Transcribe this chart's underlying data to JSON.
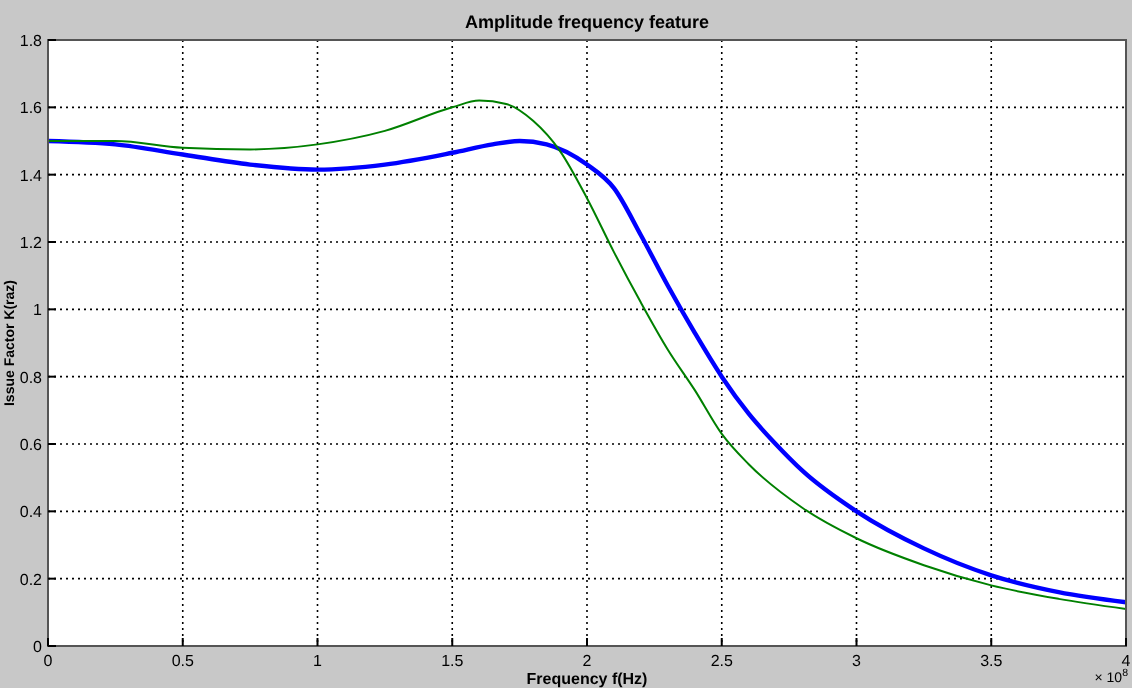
{
  "chart_data": {
    "type": "line",
    "title": "Amplitude frequency feature",
    "xlabel": "Frequency f(Hz)",
    "ylabel": "Issue Factor K(raz)",
    "annotations": [
      "× 10$^{8}$"
    ],
    "xlim": [
      0,
      4
    ],
    "xticks": [
      0,
      0.5,
      1,
      1.5,
      2,
      2.5,
      3,
      3.5,
      4
    ],
    "ylim": [
      0,
      1.8
    ],
    "yticks": [
      0,
      0.2,
      0.4,
      0.6,
      0.8,
      1,
      1.2,
      1.4,
      1.6,
      1.8
    ],
    "grid": true,
    "line_style": "solid",
    "marker": "none",
    "series": [
      {
        "color": "#0000ff",
        "x": [
          0,
          0.25,
          0.5,
          0.75,
          1,
          1.25,
          1.5,
          1.65,
          1.75,
          1.85,
          2,
          2.1,
          2.2,
          2.3,
          2.4,
          2.5,
          2.6,
          2.7,
          2.8,
          3,
          3.25,
          3.5,
          3.75,
          4
        ],
        "values": [
          1.5,
          1.49,
          1.46,
          1.43,
          1.415,
          1.43,
          1.465,
          1.49,
          1.5,
          1.49,
          1.43,
          1.36,
          1.22,
          1.07,
          0.93,
          0.8,
          0.69,
          0.6,
          0.52,
          0.4,
          0.29,
          0.21,
          0.16,
          0.13
        ]
      },
      {
        "color": "#008000",
        "x": [
          0,
          0.25,
          0.5,
          0.75,
          1,
          1.25,
          1.5,
          1.6,
          1.7,
          1.8,
          1.9,
          2,
          2.1,
          2.2,
          2.3,
          2.4,
          2.5,
          2.6,
          2.8,
          3,
          3.25,
          3.5,
          3.75,
          4
        ],
        "values": [
          1.5,
          1.5,
          1.48,
          1.475,
          1.49,
          1.53,
          1.6,
          1.62,
          1.61,
          1.56,
          1.47,
          1.33,
          1.17,
          1.02,
          0.88,
          0.76,
          0.63,
          0.54,
          0.41,
          0.32,
          0.24,
          0.18,
          0.14,
          0.11
        ]
      }
    ]
  }
}
